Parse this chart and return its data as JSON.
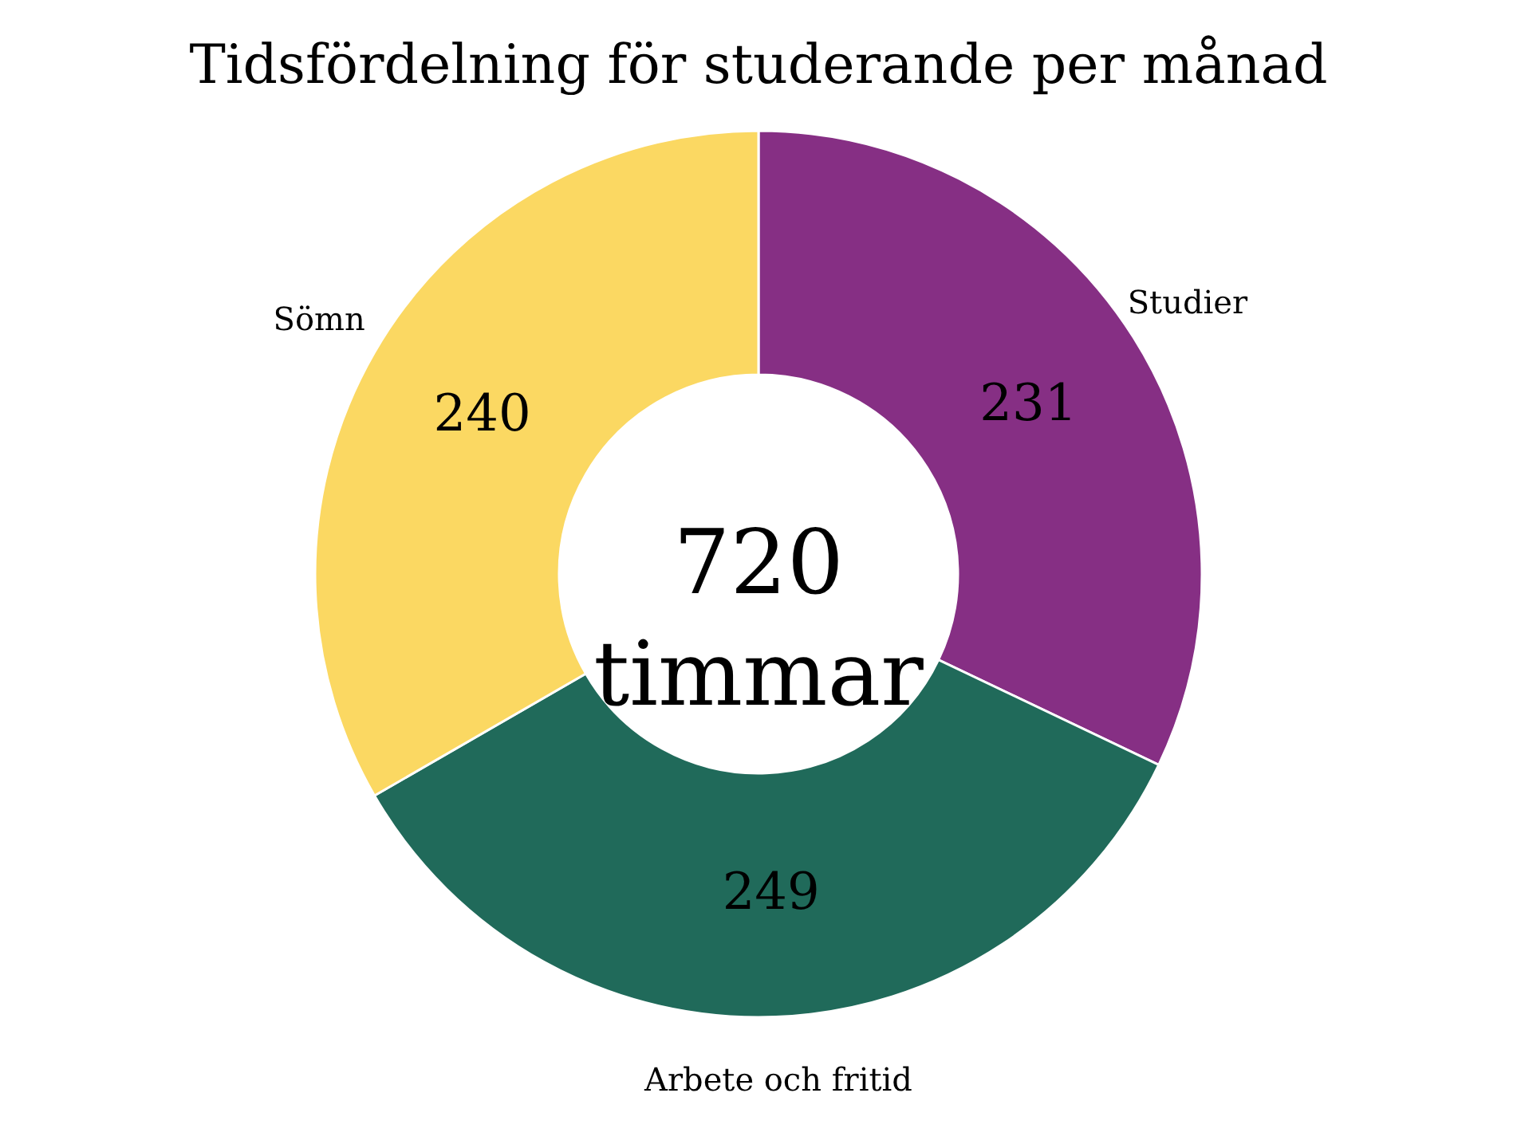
{
  "chart_data": {
    "type": "donut",
    "title": "Tidsfördelning för studerande per månad",
    "categories": [
      "Studier",
      "Arbete och fritid",
      "Sömn"
    ],
    "values": [
      231,
      249,
      240
    ],
    "colors": [
      "#862f84",
      "#206a5a",
      "#fbd862"
    ],
    "data_labels": true,
    "annotations": [
      "720 timmar"
    ]
  }
}
